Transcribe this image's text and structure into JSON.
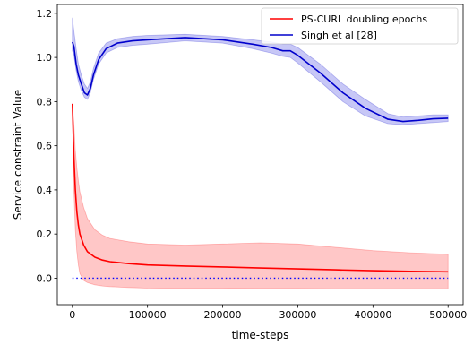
{
  "chart_data": {
    "type": "line",
    "xlabel": "time-steps",
    "ylabel": "Service constraint Value",
    "xlim": [
      -20000,
      520000
    ],
    "ylim": [
      -0.12,
      1.24
    ],
    "x_ticks": [
      0,
      100000,
      200000,
      300000,
      400000,
      500000
    ],
    "x_tick_labels": [
      "0",
      "100000",
      "200000",
      "300000",
      "400000",
      "500000"
    ],
    "y_ticks": [
      0.0,
      0.2,
      0.4,
      0.6,
      0.8,
      1.0,
      1.2
    ],
    "y_tick_labels": [
      "0.0",
      "0.2",
      "0.4",
      "0.6",
      "0.8",
      "1.0",
      "1.2"
    ],
    "grid": false,
    "legend_position": "top-right",
    "series": [
      {
        "name": "PS-CURL doubling epochs",
        "color": "#ff0000",
        "band_color": "#ff9999",
        "x": [
          0,
          2000,
          4000,
          6000,
          8000,
          10000,
          15000,
          20000,
          30000,
          40000,
          50000,
          75000,
          100000,
          150000,
          200000,
          250000,
          300000,
          350000,
          400000,
          450000,
          500000
        ],
        "mean": [
          0.79,
          0.55,
          0.4,
          0.3,
          0.24,
          0.2,
          0.15,
          0.12,
          0.095,
          0.082,
          0.075,
          0.066,
          0.06,
          0.055,
          0.051,
          0.046,
          0.042,
          0.038,
          0.034,
          0.031,
          0.029
        ],
        "lower": [
          0.79,
          0.4,
          0.22,
          0.12,
          0.06,
          0.02,
          -0.01,
          -0.02,
          -0.03,
          -0.035,
          -0.038,
          -0.042,
          -0.045,
          -0.046,
          -0.046,
          -0.047,
          -0.047,
          -0.048,
          -0.048,
          -0.048,
          -0.048
        ],
        "upper": [
          0.79,
          0.7,
          0.58,
          0.5,
          0.44,
          0.39,
          0.32,
          0.27,
          0.22,
          0.195,
          0.18,
          0.165,
          0.155,
          0.15,
          0.155,
          0.16,
          0.155,
          0.14,
          0.125,
          0.115,
          0.108
        ]
      },
      {
        "name": "Singh et al [28]",
        "color": "#0000cc",
        "band_color": "#9999ee",
        "x": [
          0,
          2000,
          5000,
          8000,
          12000,
          16000,
          20000,
          24000,
          28000,
          35000,
          45000,
          60000,
          80000,
          100000,
          150000,
          200000,
          240000,
          265000,
          280000,
          290000,
          300000,
          330000,
          360000,
          390000,
          420000,
          440000,
          460000,
          480000,
          500000
        ],
        "mean": [
          1.07,
          1.05,
          0.97,
          0.92,
          0.88,
          0.84,
          0.83,
          0.86,
          0.92,
          0.99,
          1.04,
          1.065,
          1.075,
          1.08,
          1.09,
          1.08,
          1.06,
          1.045,
          1.03,
          1.03,
          1.01,
          0.93,
          0.84,
          0.77,
          0.72,
          0.71,
          0.715,
          0.722,
          0.725
        ],
        "lower": [
          1.03,
          1.01,
          0.94,
          0.89,
          0.85,
          0.82,
          0.81,
          0.84,
          0.9,
          0.97,
          1.02,
          1.045,
          1.055,
          1.06,
          1.075,
          1.065,
          1.04,
          1.02,
          1.005,
          1.0,
          0.975,
          0.89,
          0.8,
          0.735,
          0.7,
          0.695,
          0.7,
          0.705,
          0.71
        ],
        "upper": [
          1.18,
          1.12,
          1.04,
          0.97,
          0.92,
          0.88,
          0.86,
          0.89,
          0.95,
          1.02,
          1.065,
          1.085,
          1.095,
          1.1,
          1.105,
          1.095,
          1.08,
          1.07,
          1.06,
          1.06,
          1.045,
          0.97,
          0.88,
          0.81,
          0.745,
          0.73,
          0.735,
          0.74,
          0.74
        ]
      }
    ],
    "reference_line": {
      "y": 0.0,
      "x_from": 0,
      "x_to": 500000,
      "color": "#0000ff",
      "style": "dotted"
    }
  }
}
